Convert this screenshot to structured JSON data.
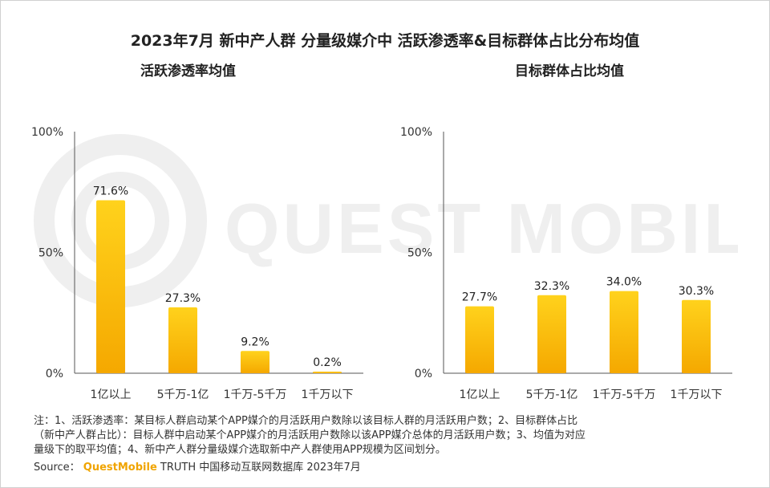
{
  "title": "2023年7月 新中产人群 分量级媒介中 活跃渗透率&目标群体占比分布均值",
  "chart_data": [
    {
      "type": "bar",
      "title": "活跃渗透率均值",
      "categories": [
        "1亿以上",
        "5千万-1亿",
        "1千万-5千万",
        "1千万以下"
      ],
      "values": [
        71.6,
        27.3,
        9.2,
        0.2
      ],
      "value_labels": [
        "71.6%",
        "27.3%",
        "9.2%",
        "0.2%"
      ],
      "y_ticks": [
        "0%",
        "50%",
        "100%"
      ],
      "ylim": [
        0,
        100
      ],
      "grid": false,
      "xlabel": "",
      "ylabel": ""
    },
    {
      "type": "bar",
      "title": "目标群体占比均值",
      "categories": [
        "1亿以上",
        "5千万-1亿",
        "1千万-5千万",
        "1千万以下"
      ],
      "values": [
        27.7,
        32.3,
        34.0,
        30.3
      ],
      "value_labels": [
        "27.7%",
        "32.3%",
        "34.0%",
        "30.3%"
      ],
      "y_ticks": [
        "0%",
        "50%",
        "100%"
      ],
      "ylim": [
        0,
        100
      ],
      "grid": false,
      "xlabel": "",
      "ylabel": ""
    }
  ],
  "notes": [
    "注：1、活跃渗透率：某目标人群启动某个APP媒介的月活跃用户数除以该目标人群的月活跃用户数；2、目标群体占比",
    "（新中产人群占比）：目标人群中启动某个APP媒介的月活跃用户数除以该APP媒介总体的月活跃用户数；3、均值为对应",
    "量级下的取平均值；4、新中产人群分量级媒介选取新中产人群使用APP规模为区间划分。"
  ],
  "source": {
    "prefix": "Source：",
    "brand": "QuestMobile",
    "suffix": "TRUTH 中国移动互联网数据库 2023年7月"
  },
  "watermark_text": "QUEST MOBILE",
  "colors": {
    "bar_top": "#ffd21c",
    "bar_bottom": "#f5a800",
    "axis": "#555555",
    "brand": "#f0a400",
    "watermark": "#efefef"
  }
}
